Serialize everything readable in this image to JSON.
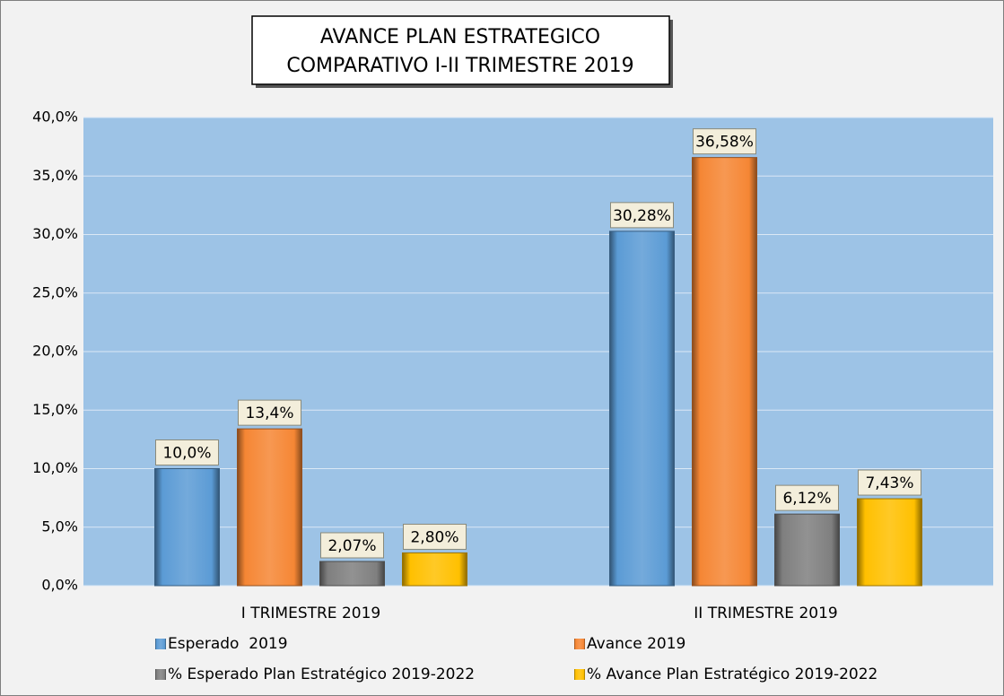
{
  "chart_data": {
    "type": "bar",
    "title": [
      "AVANCE PLAN ESTRATEGICO",
      "COMPARATIVO I-II TRIMESTRE 2019"
    ],
    "categories": [
      "I TRIMESTRE 2019",
      "II TRIMESTRE 2019"
    ],
    "series": [
      {
        "name": "Esperado  2019",
        "color": "#5b9bd5",
        "values": [
          10.0,
          30.28
        ],
        "value_labels": [
          "10,0%",
          "30,28%"
        ]
      },
      {
        "name": "Avance 2019",
        "color": "#f58634",
        "values": [
          13.4,
          36.58
        ],
        "value_labels": [
          "13,4%",
          "36,58%"
        ]
      },
      {
        "name": "% Esperado Plan Estratégico 2019-2022",
        "color": "#7f7f7f",
        "values": [
          2.07,
          6.12
        ],
        "value_labels": [
          "2,07%",
          "6,12%"
        ]
      },
      {
        "name": "% Avance Plan Estratégico 2019-2022",
        "color": "#ffc000",
        "values": [
          2.8,
          7.43
        ],
        "value_labels": [
          "2,80%",
          "7,43%"
        ]
      }
    ],
    "ylim": [
      0,
      40
    ],
    "yticks": [
      {
        "value": 0,
        "label": "0,0%"
      },
      {
        "value": 5,
        "label": "5,0%"
      },
      {
        "value": 10,
        "label": "10,0%"
      },
      {
        "value": 15,
        "label": "15,0%"
      },
      {
        "value": 20,
        "label": "20,0%"
      },
      {
        "value": 25,
        "label": "25,0%"
      },
      {
        "value": 30,
        "label": "30,0%"
      },
      {
        "value": 35,
        "label": "35,0%"
      },
      {
        "value": 40,
        "label": "40,0%"
      }
    ],
    "grid": true,
    "legend": "bottom"
  }
}
